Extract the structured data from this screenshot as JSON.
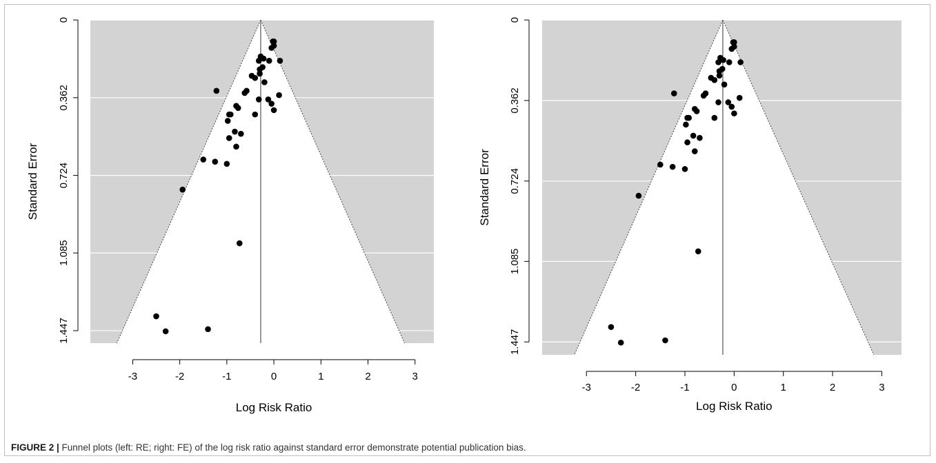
{
  "figure": {
    "label": "FIGURE 2 |",
    "caption": " Funnel plots (left: RE; right: FE) of the log risk ratio against standard error demonstrate potential publication bias."
  },
  "colors": {
    "panel_background": "#d3d3d3",
    "funnel_fill": "#ffffff",
    "gridline": "#ffffff",
    "point": "#000000",
    "axis": "#000000"
  },
  "chart_data": [
    {
      "type": "scatter",
      "plot": "funnel",
      "panel": "left",
      "xlabel": "Log Risk Ratio",
      "ylabel": "Standard Error",
      "x_ticks": [
        -3,
        -2,
        -1,
        0,
        1,
        2,
        3
      ],
      "y_ticks": [
        "0",
        "0.362",
        "0.724",
        "1.085",
        "1.447"
      ],
      "xlim": [
        -3.9,
        3.4
      ],
      "ylim": [
        0,
        1.505
      ],
      "y_reversed": true,
      "summary_estimate": -0.28,
      "funnel_bounds_at_max_se": [
        -3.22,
        2.66
      ],
      "points": [
        {
          "x": -0.02,
          "y": 0.1
        },
        {
          "x": 0.0,
          "y": 0.1
        },
        {
          "x": -0.05,
          "y": 0.13
        },
        {
          "x": 0.0,
          "y": 0.12
        },
        {
          "x": -0.22,
          "y": 0.18
        },
        {
          "x": -0.28,
          "y": 0.17
        },
        {
          "x": -0.32,
          "y": 0.19
        },
        {
          "x": -0.1,
          "y": 0.19
        },
        {
          "x": 0.13,
          "y": 0.19
        },
        {
          "x": -0.24,
          "y": 0.22
        },
        {
          "x": -0.3,
          "y": 0.23
        },
        {
          "x": -0.47,
          "y": 0.26
        },
        {
          "x": -0.4,
          "y": 0.27
        },
        {
          "x": -0.3,
          "y": 0.25
        },
        {
          "x": -0.2,
          "y": 0.29
        },
        {
          "x": -1.22,
          "y": 0.33
        },
        {
          "x": -0.58,
          "y": 0.33
        },
        {
          "x": -0.62,
          "y": 0.34
        },
        {
          "x": -0.32,
          "y": 0.37
        },
        {
          "x": -0.12,
          "y": 0.37
        },
        {
          "x": -0.05,
          "y": 0.39
        },
        {
          "x": 0.0,
          "y": 0.42
        },
        {
          "x": 0.11,
          "y": 0.35
        },
        {
          "x": -0.8,
          "y": 0.4
        },
        {
          "x": -0.76,
          "y": 0.41
        },
        {
          "x": -0.95,
          "y": 0.44
        },
        {
          "x": -0.98,
          "y": 0.47
        },
        {
          "x": -0.92,
          "y": 0.44
        },
        {
          "x": -0.4,
          "y": 0.44
        },
        {
          "x": -0.83,
          "y": 0.52
        },
        {
          "x": -0.7,
          "y": 0.53
        },
        {
          "x": -0.95,
          "y": 0.55
        },
        {
          "x": -0.8,
          "y": 0.59
        },
        {
          "x": -1.5,
          "y": 0.65
        },
        {
          "x": -1.25,
          "y": 0.66
        },
        {
          "x": -1.0,
          "y": 0.67
        },
        {
          "x": -1.94,
          "y": 0.79
        },
        {
          "x": -0.73,
          "y": 1.04
        },
        {
          "x": -2.5,
          "y": 1.38
        },
        {
          "x": -2.3,
          "y": 1.45
        },
        {
          "x": -1.4,
          "y": 1.44
        }
      ]
    },
    {
      "type": "scatter",
      "plot": "funnel",
      "panel": "right",
      "xlabel": "Log Risk Ratio",
      "ylabel": "Standard Error",
      "x_ticks": [
        -3,
        -2,
        -1,
        0,
        1,
        2,
        3
      ],
      "y_ticks": [
        "0",
        "0.362",
        "0.724",
        "1.085",
        "1.447"
      ],
      "xlim": [
        -3.9,
        3.4
      ],
      "ylim": [
        0,
        1.505
      ],
      "y_reversed": true,
      "summary_estimate": -0.23,
      "funnel_bounds_at_max_se": [
        -3.13,
        2.72
      ],
      "points": [
        {
          "x": -0.02,
          "y": 0.1
        },
        {
          "x": 0.0,
          "y": 0.1
        },
        {
          "x": -0.05,
          "y": 0.13
        },
        {
          "x": 0.0,
          "y": 0.12
        },
        {
          "x": -0.22,
          "y": 0.18
        },
        {
          "x": -0.28,
          "y": 0.17
        },
        {
          "x": -0.32,
          "y": 0.19
        },
        {
          "x": -0.1,
          "y": 0.19
        },
        {
          "x": 0.13,
          "y": 0.19
        },
        {
          "x": -0.24,
          "y": 0.22
        },
        {
          "x": -0.3,
          "y": 0.23
        },
        {
          "x": -0.47,
          "y": 0.26
        },
        {
          "x": -0.4,
          "y": 0.27
        },
        {
          "x": -0.3,
          "y": 0.25
        },
        {
          "x": -0.2,
          "y": 0.29
        },
        {
          "x": -1.22,
          "y": 0.33
        },
        {
          "x": -0.58,
          "y": 0.33
        },
        {
          "x": -0.62,
          "y": 0.34
        },
        {
          "x": -0.32,
          "y": 0.37
        },
        {
          "x": -0.12,
          "y": 0.37
        },
        {
          "x": -0.05,
          "y": 0.39
        },
        {
          "x": 0.0,
          "y": 0.42
        },
        {
          "x": 0.11,
          "y": 0.35
        },
        {
          "x": -0.8,
          "y": 0.4
        },
        {
          "x": -0.76,
          "y": 0.41
        },
        {
          "x": -0.95,
          "y": 0.44
        },
        {
          "x": -0.98,
          "y": 0.47
        },
        {
          "x": -0.92,
          "y": 0.44
        },
        {
          "x": -0.4,
          "y": 0.44
        },
        {
          "x": -0.83,
          "y": 0.52
        },
        {
          "x": -0.7,
          "y": 0.53
        },
        {
          "x": -0.95,
          "y": 0.55
        },
        {
          "x": -0.8,
          "y": 0.59
        },
        {
          "x": -1.5,
          "y": 0.65
        },
        {
          "x": -1.25,
          "y": 0.66
        },
        {
          "x": -1.0,
          "y": 0.67
        },
        {
          "x": -1.94,
          "y": 0.79
        },
        {
          "x": -0.73,
          "y": 1.04
        },
        {
          "x": -2.5,
          "y": 1.38
        },
        {
          "x": -2.3,
          "y": 1.45
        },
        {
          "x": -1.4,
          "y": 1.44
        }
      ]
    }
  ]
}
